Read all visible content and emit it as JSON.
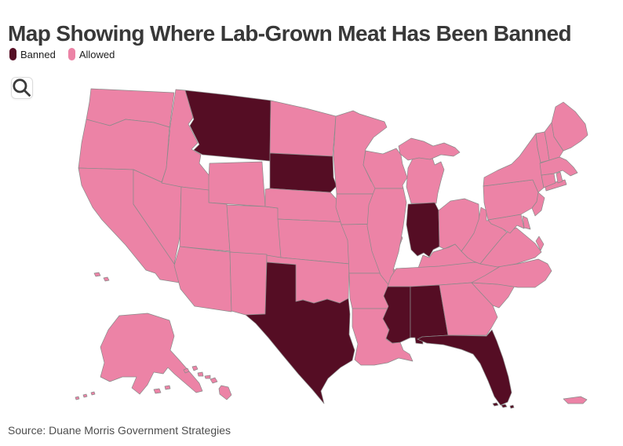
{
  "title": "Map Showing Where Lab-Grown Meat Has Been Banned",
  "legend": {
    "items": [
      {
        "label": "Banned",
        "status": "banned",
        "color": "#550D24"
      },
      {
        "label": "Allowed",
        "status": "allowed",
        "color": "#EC83A6"
      }
    ]
  },
  "toolbar": {
    "zoom_icon": "magnifier"
  },
  "map": {
    "stroke_color": "#8a8a8a",
    "background": "#ffffff",
    "banned_states": [
      "Montana",
      "South Dakota",
      "Indiana",
      "Texas",
      "Mississippi",
      "Alabama",
      "Florida"
    ],
    "states": [
      {
        "id": "wa",
        "name": "Washington",
        "status": "allowed"
      },
      {
        "id": "or",
        "name": "Oregon",
        "status": "allowed"
      },
      {
        "id": "ca",
        "name": "California",
        "status": "allowed"
      },
      {
        "id": "nv",
        "name": "Nevada",
        "status": "allowed"
      },
      {
        "id": "id",
        "name": "Idaho",
        "status": "allowed"
      },
      {
        "id": "mt",
        "name": "Montana",
        "status": "banned"
      },
      {
        "id": "wy",
        "name": "Wyoming",
        "status": "allowed"
      },
      {
        "id": "ut",
        "name": "Utah",
        "status": "allowed"
      },
      {
        "id": "co",
        "name": "Colorado",
        "status": "allowed"
      },
      {
        "id": "az",
        "name": "Arizona",
        "status": "allowed"
      },
      {
        "id": "nm",
        "name": "New Mexico",
        "status": "allowed"
      },
      {
        "id": "nd",
        "name": "North Dakota",
        "status": "allowed"
      },
      {
        "id": "sd",
        "name": "South Dakota",
        "status": "banned"
      },
      {
        "id": "ne",
        "name": "Nebraska",
        "status": "allowed"
      },
      {
        "id": "ks",
        "name": "Kansas",
        "status": "allowed"
      },
      {
        "id": "ok",
        "name": "Oklahoma",
        "status": "allowed"
      },
      {
        "id": "tx",
        "name": "Texas",
        "status": "banned"
      },
      {
        "id": "mn",
        "name": "Minnesota",
        "status": "allowed"
      },
      {
        "id": "ia",
        "name": "Iowa",
        "status": "allowed"
      },
      {
        "id": "mo",
        "name": "Missouri",
        "status": "allowed"
      },
      {
        "id": "ar",
        "name": "Arkansas",
        "status": "allowed"
      },
      {
        "id": "la",
        "name": "Louisiana",
        "status": "allowed"
      },
      {
        "id": "wi",
        "name": "Wisconsin",
        "status": "allowed"
      },
      {
        "id": "il",
        "name": "Illinois",
        "status": "allowed"
      },
      {
        "id": "mi",
        "name": "Michigan",
        "status": "allowed"
      },
      {
        "id": "in",
        "name": "Indiana",
        "status": "banned"
      },
      {
        "id": "oh",
        "name": "Ohio",
        "status": "allowed"
      },
      {
        "id": "ky",
        "name": "Kentucky",
        "status": "allowed"
      },
      {
        "id": "tn",
        "name": "Tennessee",
        "status": "allowed"
      },
      {
        "id": "ms",
        "name": "Mississippi",
        "status": "banned"
      },
      {
        "id": "al",
        "name": "Alabama",
        "status": "banned"
      },
      {
        "id": "ga",
        "name": "Georgia",
        "status": "allowed"
      },
      {
        "id": "fl",
        "name": "Florida",
        "status": "banned"
      },
      {
        "id": "sc",
        "name": "South Carolina",
        "status": "allowed"
      },
      {
        "id": "nc",
        "name": "North Carolina",
        "status": "allowed"
      },
      {
        "id": "va",
        "name": "Virginia",
        "status": "allowed"
      },
      {
        "id": "wv",
        "name": "West Virginia",
        "status": "allowed"
      },
      {
        "id": "md",
        "name": "Maryland",
        "status": "allowed"
      },
      {
        "id": "de",
        "name": "Delaware",
        "status": "allowed"
      },
      {
        "id": "pa",
        "name": "Pennsylvania",
        "status": "allowed"
      },
      {
        "id": "nj",
        "name": "New Jersey",
        "status": "allowed"
      },
      {
        "id": "ny",
        "name": "New York",
        "status": "allowed"
      },
      {
        "id": "ct",
        "name": "Connecticut",
        "status": "allowed"
      },
      {
        "id": "ri",
        "name": "Rhode Island",
        "status": "allowed"
      },
      {
        "id": "ma",
        "name": "Massachusetts",
        "status": "allowed"
      },
      {
        "id": "vt",
        "name": "Vermont",
        "status": "allowed"
      },
      {
        "id": "nh",
        "name": "New Hampshire",
        "status": "allowed"
      },
      {
        "id": "me",
        "name": "Maine",
        "status": "allowed"
      },
      {
        "id": "ak",
        "name": "Alaska",
        "status": "allowed"
      },
      {
        "id": "hi",
        "name": "Hawaii",
        "status": "allowed"
      },
      {
        "id": "pr",
        "name": "Puerto Rico",
        "status": "allowed"
      }
    ]
  },
  "source": {
    "text": "Source: Duane Morris Government Strategies"
  }
}
